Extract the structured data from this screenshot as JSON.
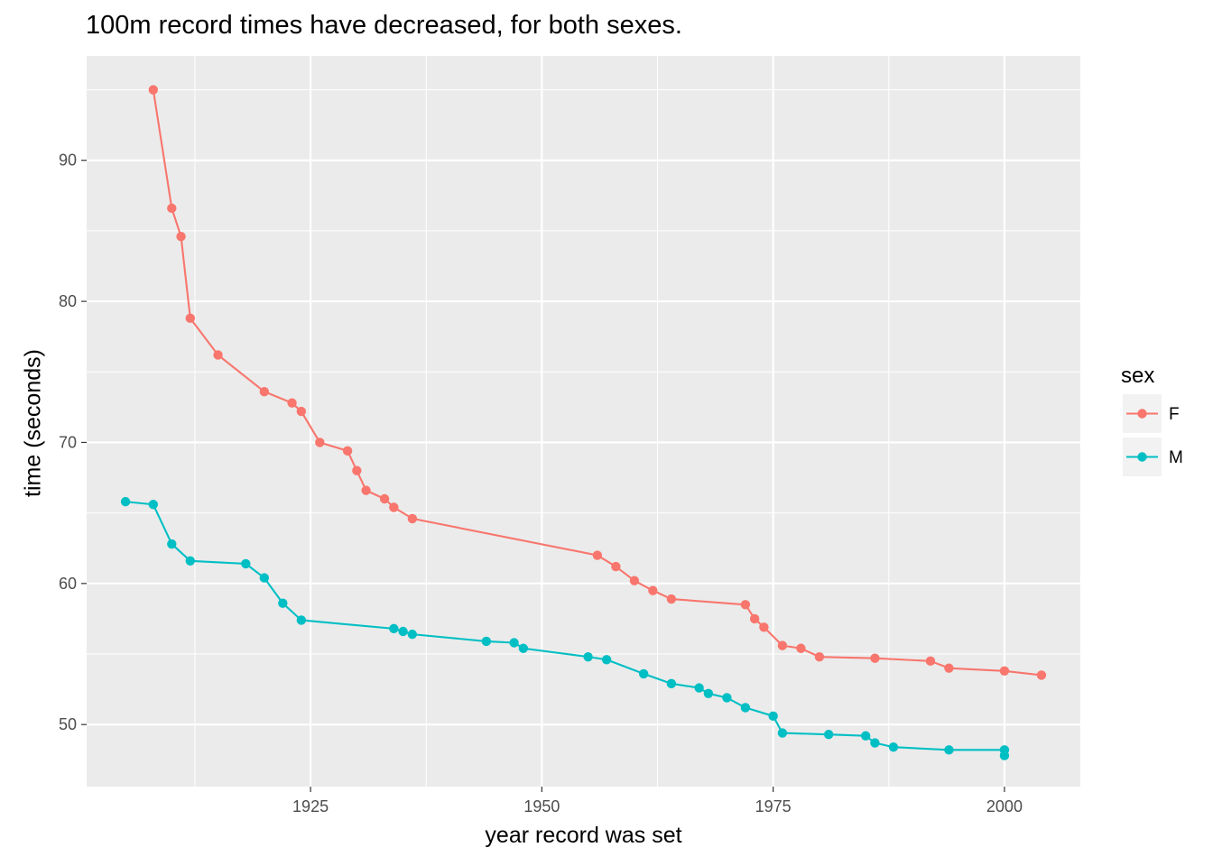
{
  "chart_data": {
    "type": "line",
    "title": "100m record times have decreased, for both sexes.",
    "xlabel": "year record was set",
    "ylabel": "time (seconds)",
    "xlim": [
      1900.8,
      2008.2
    ],
    "ylim": [
      45.6,
      97.4
    ],
    "x_ticks": [
      1925,
      1950,
      1975,
      2000
    ],
    "y_ticks": [
      50,
      60,
      70,
      80,
      90
    ],
    "x_tick_labels": [
      "1925",
      "1950",
      "1975",
      "2000"
    ],
    "y_tick_labels": [
      "50",
      "60",
      "70",
      "80",
      "90"
    ],
    "grid": true,
    "legend": {
      "title": "sex",
      "position": "right"
    },
    "series": [
      {
        "name": "F",
        "color": "#F8766D",
        "points": [
          [
            1908,
            95.0
          ],
          [
            1910,
            86.6
          ],
          [
            1911,
            84.6
          ],
          [
            1912,
            78.8
          ],
          [
            1915,
            76.2
          ],
          [
            1920,
            73.6
          ],
          [
            1923,
            72.8
          ],
          [
            1924,
            72.2
          ],
          [
            1926,
            70.0
          ],
          [
            1929,
            69.4
          ],
          [
            1930,
            68.0
          ],
          [
            1931,
            66.6
          ],
          [
            1933,
            66.0
          ],
          [
            1934,
            65.4
          ],
          [
            1936,
            64.6
          ],
          [
            1956,
            62.0
          ],
          [
            1958,
            61.2
          ],
          [
            1960,
            60.2
          ],
          [
            1962,
            59.5
          ],
          [
            1964,
            58.9
          ],
          [
            1972,
            58.5
          ],
          [
            1973,
            57.5
          ],
          [
            1974,
            56.9
          ],
          [
            1976,
            55.6
          ],
          [
            1978,
            55.4
          ],
          [
            1980,
            54.8
          ],
          [
            1986,
            54.7
          ],
          [
            1992,
            54.5
          ],
          [
            1994,
            54.0
          ],
          [
            2000,
            53.8
          ],
          [
            2004,
            53.5
          ]
        ]
      },
      {
        "name": "M",
        "color": "#00BFC4",
        "points": [
          [
            1905,
            65.8
          ],
          [
            1908,
            65.6
          ],
          [
            1910,
            62.8
          ],
          [
            1912,
            61.6
          ],
          [
            1918,
            61.4
          ],
          [
            1920,
            60.4
          ],
          [
            1922,
            58.6
          ],
          [
            1924,
            57.4
          ],
          [
            1934,
            56.8
          ],
          [
            1935,
            56.6
          ],
          [
            1936,
            56.4
          ],
          [
            1944,
            55.9
          ],
          [
            1947,
            55.8
          ],
          [
            1948,
            55.4
          ],
          [
            1955,
            54.8
          ],
          [
            1957,
            54.6
          ],
          [
            1961,
            53.6
          ],
          [
            1964,
            52.9
          ],
          [
            1967,
            52.6
          ],
          [
            1968,
            52.2
          ],
          [
            1970,
            51.9
          ],
          [
            1972,
            51.2
          ],
          [
            1975,
            50.6
          ],
          [
            1976,
            49.4
          ],
          [
            1981,
            49.3
          ],
          [
            1985,
            49.2
          ],
          [
            1986,
            48.7
          ],
          [
            1988,
            48.4
          ],
          [
            1994,
            48.2
          ],
          [
            2000,
            48.2
          ],
          [
            2000,
            47.8
          ]
        ]
      }
    ]
  }
}
